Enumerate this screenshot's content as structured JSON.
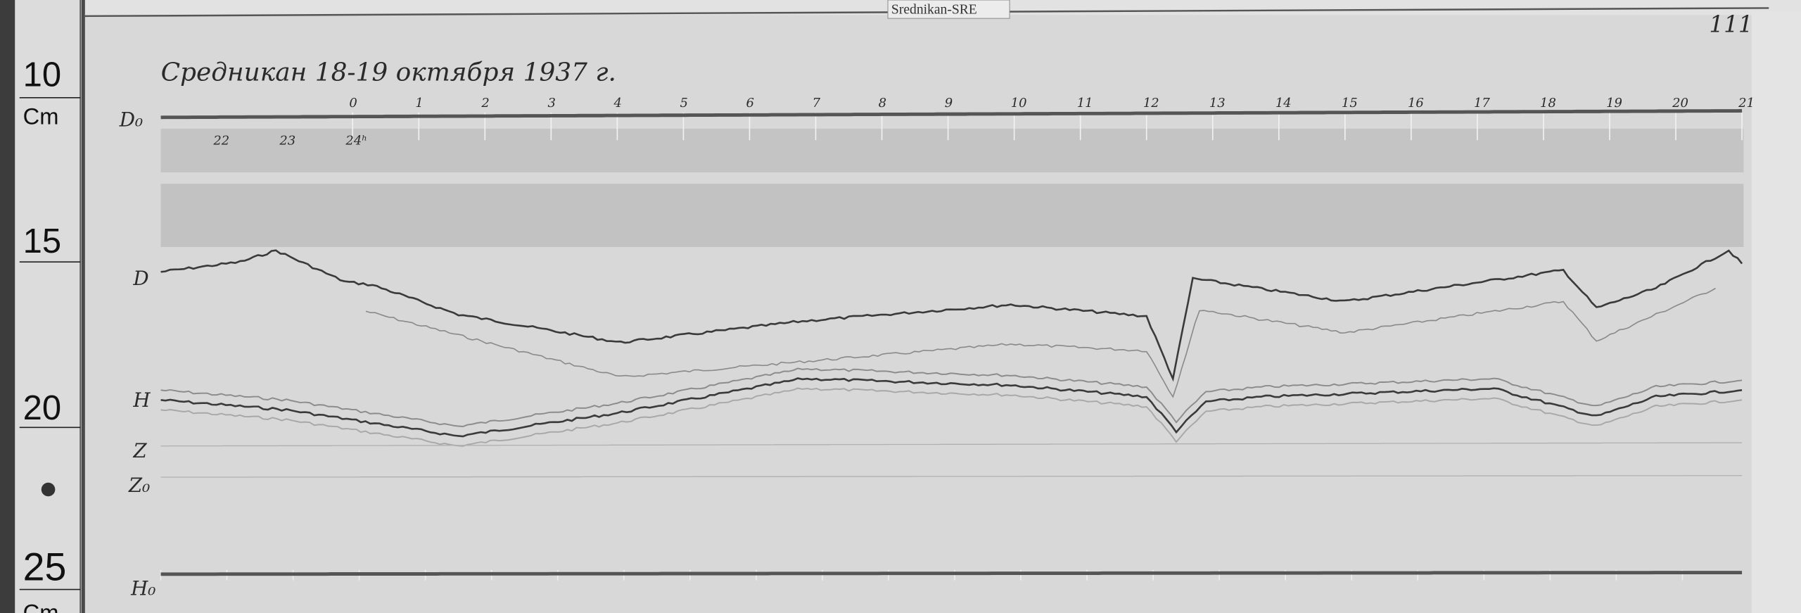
{
  "station_tag": "Srednikan-SRE",
  "sheet_number": "111",
  "title": "Средникан 18-19 октября 1937 г.",
  "ruler": {
    "unit": "Cm",
    "marks": [
      "10",
      "15",
      "20",
      "25"
    ],
    "bottom_unit": "Cm"
  },
  "trace_labels": {
    "D0": "D₀",
    "D": "D",
    "H": "H",
    "Z": "Z",
    "Z0": "Z₀",
    "H0": "H₀"
  },
  "colors": {
    "paper": "#d9d9d9",
    "trace": "#3a3a3a",
    "trace_light": "#8a8a8a",
    "band": "#bdbdbd"
  },
  "chart_data": {
    "type": "line",
    "title": "Средникан 18-19 октября 1937 г.",
    "xlabel": "",
    "ylabel": "",
    "x_unit": "hour",
    "top_tick_labels": [
      "0",
      "1",
      "2",
      "3",
      "4",
      "5",
      "6",
      "7",
      "8",
      "9",
      "10",
      "11",
      "12",
      "13",
      "14",
      "15",
      "16",
      "17",
      "18",
      "19",
      "20",
      "21"
    ],
    "top_tick_hours": [
      0,
      1,
      2,
      3,
      4,
      5,
      6,
      7,
      8,
      9,
      10,
      11,
      12,
      13,
      14,
      15,
      16,
      17,
      18,
      19,
      20,
      21
    ],
    "prev_day_tick_labels": [
      "22",
      "23",
      "24ʰ"
    ],
    "prev_day_tick_hours": [
      -2,
      -1,
      0
    ],
    "y_unit": "cm (ruler)",
    "ylim": [
      10,
      25
    ],
    "grid": false,
    "series": [
      {
        "name": "D0",
        "style": "baseline",
        "points": [
          [
            -2.9,
            10.6
          ],
          [
            21,
            10.4
          ]
        ]
      },
      {
        "name": "D",
        "style": "dark",
        "points": [
          [
            -2.9,
            15.3
          ],
          [
            -1.7,
            15.0
          ],
          [
            -1.16,
            14.65
          ],
          [
            -0.12,
            15.6
          ],
          [
            0.3,
            15.7
          ],
          [
            1.6,
            16.6
          ],
          [
            4.05,
            17.45
          ],
          [
            6.8,
            16.8
          ],
          [
            9.95,
            16.3
          ],
          [
            12.0,
            16.65
          ],
          [
            12.4,
            18.55
          ],
          [
            12.7,
            15.5
          ],
          [
            15.0,
            16.2
          ],
          [
            18.3,
            15.25
          ],
          [
            18.8,
            16.4
          ],
          [
            19.7,
            15.8
          ],
          [
            20.8,
            14.65
          ],
          [
            21.0,
            15.05
          ]
        ]
      },
      {
        "name": "D",
        "style": "light",
        "points": [
          [
            0.2,
            16.5
          ],
          [
            4.05,
            18.5
          ],
          [
            9.95,
            17.5
          ],
          [
            12.0,
            17.7
          ],
          [
            12.4,
            19.1
          ],
          [
            12.8,
            16.45
          ],
          [
            15.0,
            17.15
          ],
          [
            18.3,
            16.2
          ],
          [
            18.8,
            17.4
          ],
          [
            20.6,
            15.8
          ]
        ]
      },
      {
        "name": "H",
        "style": "dark",
        "points": [
          [
            -2.9,
            19.2
          ],
          [
            -1.0,
            19.5
          ],
          [
            1.6,
            20.3
          ],
          [
            4.0,
            19.6
          ],
          [
            6.8,
            18.55
          ],
          [
            9.95,
            18.75
          ],
          [
            12.0,
            19.1
          ],
          [
            12.45,
            20.15
          ],
          [
            12.9,
            19.25
          ],
          [
            13.8,
            19.1
          ],
          [
            17.25,
            18.85
          ],
          [
            18.8,
            19.7
          ],
          [
            19.7,
            19.1
          ],
          [
            21.0,
            18.9
          ]
        ]
      },
      {
        "name": "Z",
        "style": "faint",
        "points": [
          [
            -2.9,
            20.6
          ],
          [
            21,
            20.5
          ]
        ]
      },
      {
        "name": "Z0",
        "style": "faint",
        "points": [
          [
            -2.9,
            21.55
          ],
          [
            21,
            21.5
          ]
        ]
      },
      {
        "name": "H0",
        "style": "baseline",
        "points": [
          [
            -2.9,
            24.5
          ],
          [
            21,
            24.45
          ]
        ]
      }
    ]
  }
}
